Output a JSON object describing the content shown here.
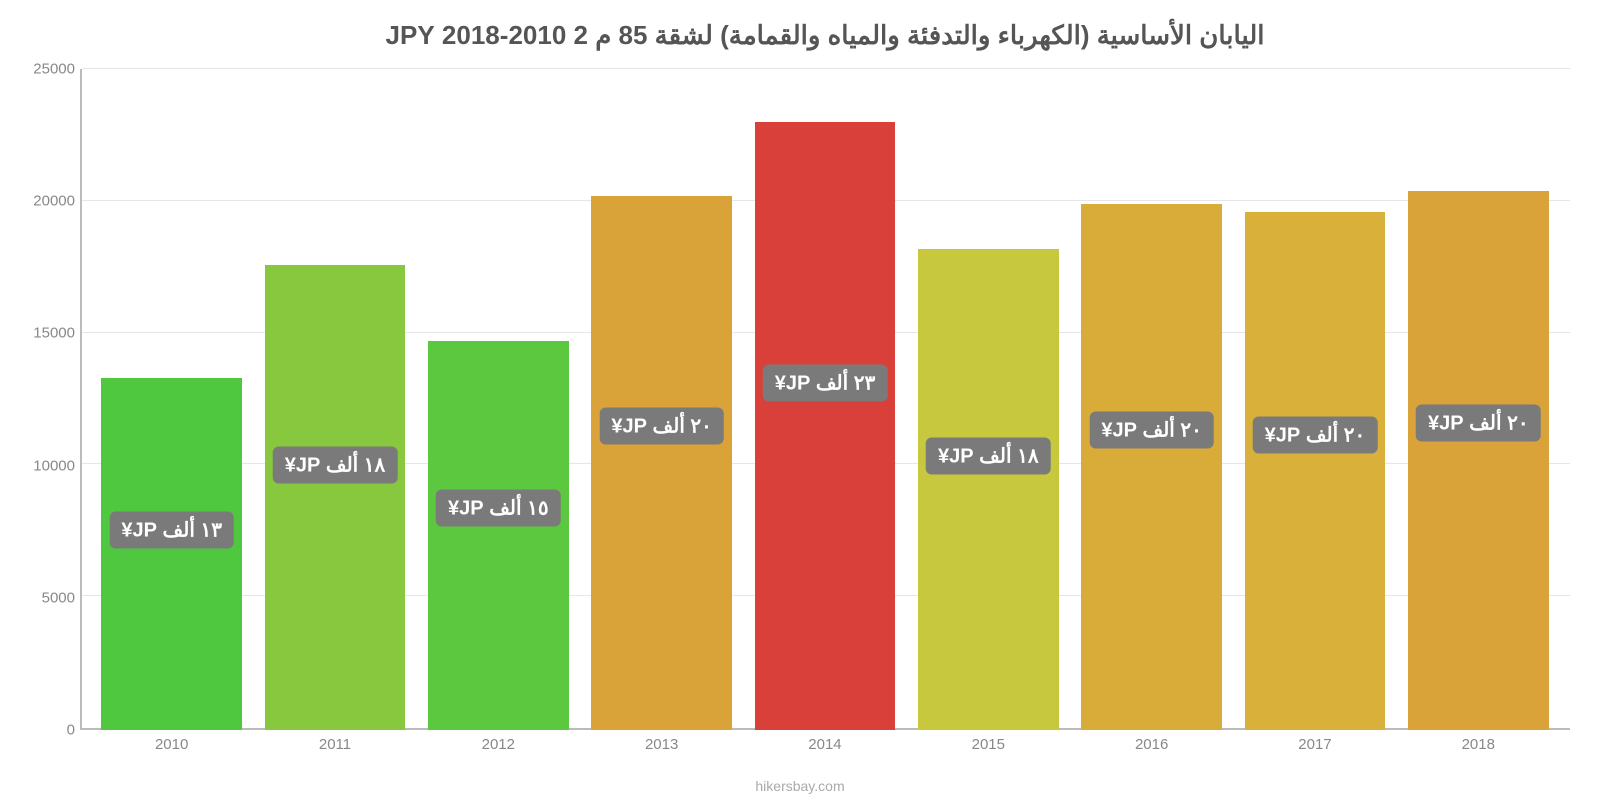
{
  "chart": {
    "type": "bar",
    "title": "اليابان الأساسية (الكهرباء والتدفئة والمياه والقمامة) لشقة 85 م 2 2010-2018 JPY",
    "attribution": "hikersbay.com",
    "y_axis": {
      "min": 0,
      "max": 25000,
      "ticks": [
        0,
        5000,
        10000,
        15000,
        20000,
        25000
      ],
      "tick_labels": [
        "0",
        "5000",
        "10000",
        "15000",
        "20000",
        "25000"
      ]
    },
    "background_color": "#ffffff",
    "grid_color": "#e6e6e6",
    "axis_color": "#bbbbbb",
    "text_color": "#888888",
    "title_color": "#555555",
    "label_bg": "#7a7a7a",
    "label_fg": "#ffffff",
    "bars": [
      {
        "x": "2010",
        "value": 13300,
        "color": "#4fc83f",
        "label": "١٣ ألف JP¥"
      },
      {
        "x": "2011",
        "value": 17600,
        "color": "#87c83f",
        "label": "١٨ ألف JP¥"
      },
      {
        "x": "2012",
        "value": 14700,
        "color": "#5cc83f",
        "label": "١٥ ألف JP¥"
      },
      {
        "x": "2013",
        "value": 20200,
        "color": "#d9a339",
        "label": "٢٠ ألف JP¥"
      },
      {
        "x": "2014",
        "value": 23000,
        "color": "#d94039",
        "label": "٢٣ ألف JP¥"
      },
      {
        "x": "2015",
        "value": 18200,
        "color": "#c8c83f",
        "label": "١٨ ألف JP¥"
      },
      {
        "x": "2016",
        "value": 19900,
        "color": "#d9ab39",
        "label": "٢٠ ألف JP¥"
      },
      {
        "x": "2017",
        "value": 19600,
        "color": "#d9b039",
        "label": "٢٠ ألف JP¥"
      },
      {
        "x": "2018",
        "value": 20400,
        "color": "#d9a339",
        "label": "٢٠ ألف JP¥"
      }
    ]
  }
}
